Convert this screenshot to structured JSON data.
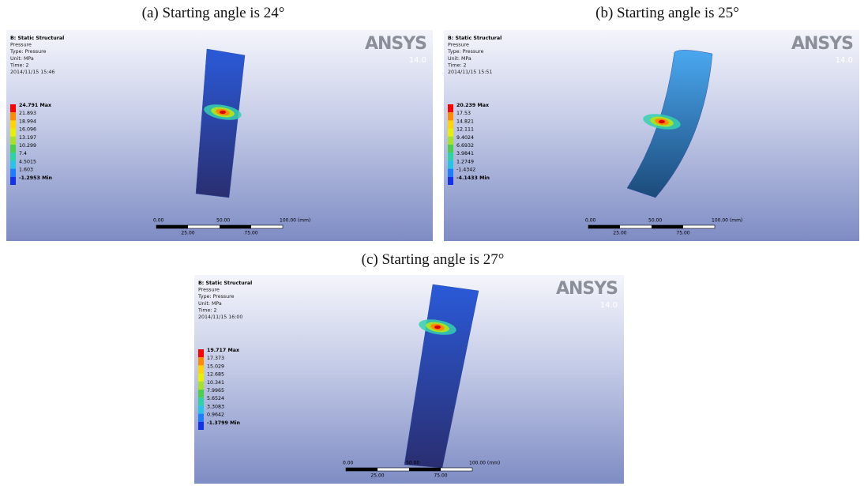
{
  "panels": [
    {
      "caption": "(a) Starting angle is 24°",
      "header": [
        "B: Static Structural",
        "Pressure",
        "Type: Pressure",
        "Unit: MPa",
        "Time: 2",
        "2014/11/15 15:46"
      ],
      "legend": [
        "24.791 Max",
        "21.893",
        "18.994",
        "16.096",
        "13.197",
        "10.299",
        "7.4",
        "4.5015",
        "1.603",
        "-1.2953 Min"
      ],
      "logo": "ANSYS",
      "version": "14.0",
      "scale": {
        "top": [
          "0.00",
          "50.00",
          "100.00 (mm)"
        ],
        "bottom": [
          "25.00",
          "75.00"
        ]
      }
    },
    {
      "caption": "(b) Starting angle is 25°",
      "header": [
        "B: Static Structural",
        "Pressure",
        "Type: Pressure",
        "Unit: MPa",
        "Time: 2",
        "2014/11/15 15:51"
      ],
      "legend": [
        "20.239 Max",
        "17.53",
        "14.821",
        "12.111",
        "9.4024",
        "6.6932",
        "3.9841",
        "1.2749",
        "-1.4342",
        "-4.1433 Min"
      ],
      "logo": "ANSYS",
      "version": "14.0",
      "scale": {
        "top": [
          "0.00",
          "50.00",
          "100.00 (mm)"
        ],
        "bottom": [
          "25.00",
          "75.00"
        ]
      }
    },
    {
      "caption": "(c) Starting angle is 27°",
      "header": [
        "B: Static Structural",
        "Pressure",
        "Type: Pressure",
        "Unit: MPa",
        "Time: 2",
        "2014/11/15 16:00"
      ],
      "legend": [
        "19.717 Max",
        "17.373",
        "15.029",
        "12.685",
        "10.341",
        "7.9965",
        "5.6524",
        "3.3083",
        "0.9642",
        "-1.3799 Min"
      ],
      "logo": "ANSYS",
      "version": "14.0",
      "scale": {
        "top": [
          "0.00",
          "50.00",
          "100.00 (mm)"
        ],
        "bottom": [
          "25.00",
          "75.00"
        ]
      }
    }
  ]
}
